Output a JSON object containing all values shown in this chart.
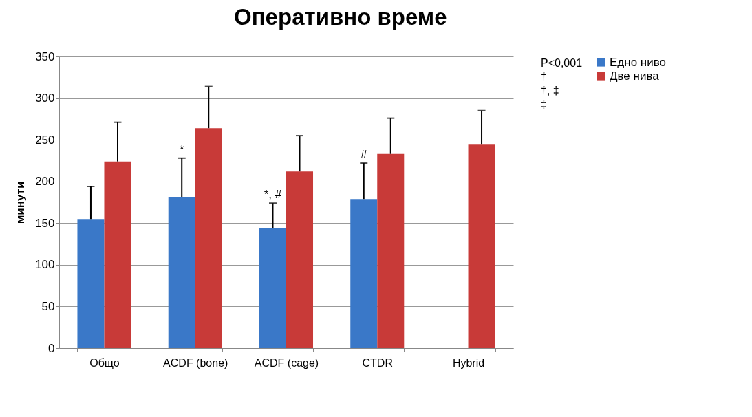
{
  "chart_data": {
    "type": "bar",
    "title": "Оперативно време",
    "ylabel": "минути",
    "categories": [
      "Общо",
      "ACDF (bone)",
      "ACDF  (cage)",
      "CTDR",
      "Hybrid"
    ],
    "series": [
      {
        "name": "Едно ниво",
        "color": "#3a78c8",
        "values": [
          155,
          181,
          144,
          179,
          null
        ],
        "errors": [
          [
            155,
            194
          ],
          [
            181,
            228
          ],
          [
            144,
            174
          ],
          [
            179,
            222
          ],
          null
        ]
      },
      {
        "name": "Две нива",
        "color": "#c83a38",
        "values": [
          224,
          264,
          212,
          233,
          245
        ],
        "errors": [
          [
            224,
            271
          ],
          [
            264,
            314
          ],
          [
            212,
            255
          ],
          [
            233,
            276
          ],
          [
            245,
            285
          ]
        ]
      }
    ],
    "ylim": [
      0,
      350
    ],
    "yticks": [
      0,
      50,
      100,
      150,
      200,
      250,
      300,
      350
    ],
    "grid": "y",
    "legend": "right",
    "annotations": [
      "P<0,001",
      {
        "text": "*",
        "x": "ACDF (bone)",
        "y": 228
      },
      "†",
      {
        "text": "*, #",
        "x": "ACDF  (cage)",
        "y": 174
      },
      "†, ‡",
      {
        "text": "#",
        "x": "CTDR",
        "y": 222
      },
      "‡"
    ]
  }
}
